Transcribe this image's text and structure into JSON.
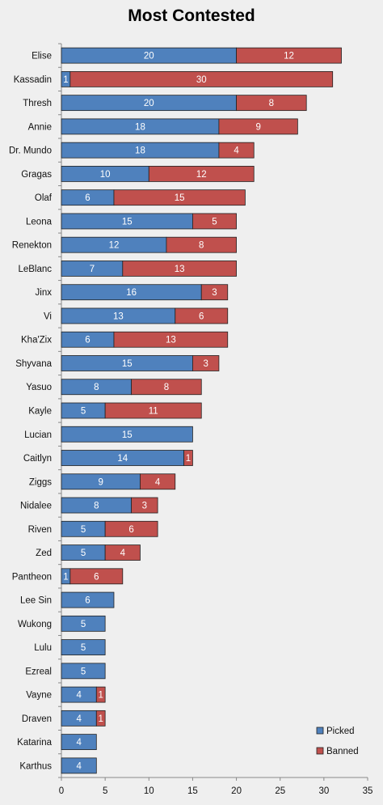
{
  "chart_data": {
    "type": "bar",
    "orientation": "horizontal",
    "stacked": true,
    "title": "Most Contested",
    "xlabel": "",
    "ylabel": "",
    "xlim": [
      0,
      35
    ],
    "xticks": [
      0,
      5,
      10,
      15,
      20,
      25,
      30,
      35
    ],
    "grid": false,
    "legend_position": "bottom-right",
    "categories": [
      "Elise",
      "Kassadin",
      "Thresh",
      "Annie",
      "Dr. Mundo",
      "Gragas",
      "Olaf",
      "Leona",
      "Renekton",
      "LeBlanc",
      "Jinx",
      "Vi",
      "Kha'Zix",
      "Shyvana",
      "Yasuo",
      "Kayle",
      "Lucian",
      "Caitlyn",
      "Ziggs",
      "Nidalee",
      "Riven",
      "Zed",
      "Pantheon",
      "Lee Sin",
      "Wukong",
      "Lulu",
      "Ezreal",
      "Vayne",
      "Draven",
      "Katarina",
      "Karthus"
    ],
    "series": [
      {
        "name": "Picked",
        "color": "#4f81bd",
        "values": [
          20,
          1,
          20,
          18,
          18,
          10,
          6,
          15,
          12,
          7,
          16,
          13,
          6,
          15,
          8,
          5,
          15,
          14,
          9,
          8,
          5,
          5,
          1,
          6,
          5,
          5,
          5,
          4,
          4,
          4,
          4
        ]
      },
      {
        "name": "Banned",
        "color": "#c0504d",
        "values": [
          12,
          30,
          8,
          9,
          4,
          12,
          15,
          5,
          8,
          13,
          3,
          6,
          13,
          3,
          8,
          11,
          0,
          1,
          4,
          3,
          6,
          4,
          6,
          0,
          0,
          0,
          0,
          1,
          1,
          0,
          0
        ]
      }
    ]
  }
}
